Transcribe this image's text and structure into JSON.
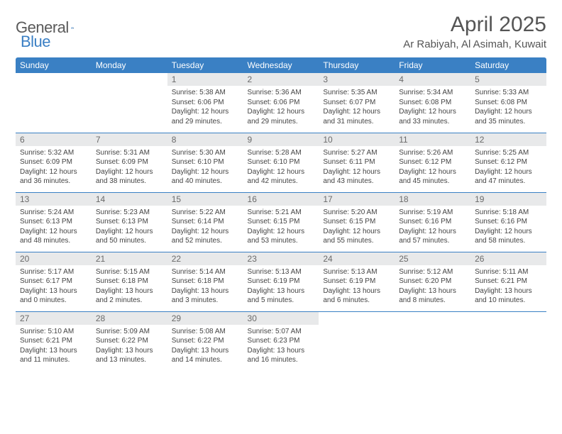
{
  "logo": {
    "text1": "General",
    "text2": "Blue"
  },
  "title": "April 2025",
  "location": "Ar Rabiyah, Al Asimah, Kuwait",
  "header_color": "#3a80c4",
  "daynum_bg": "#e8e9ea",
  "weekdays": [
    "Sunday",
    "Monday",
    "Tuesday",
    "Wednesday",
    "Thursday",
    "Friday",
    "Saturday"
  ],
  "days": [
    {
      "n": "",
      "sr": "",
      "ss": "",
      "dl": ""
    },
    {
      "n": "",
      "sr": "",
      "ss": "",
      "dl": ""
    },
    {
      "n": "1",
      "sr": "5:38 AM",
      "ss": "6:06 PM",
      "dl": "12 hours and 29 minutes."
    },
    {
      "n": "2",
      "sr": "5:36 AM",
      "ss": "6:06 PM",
      "dl": "12 hours and 29 minutes."
    },
    {
      "n": "3",
      "sr": "5:35 AM",
      "ss": "6:07 PM",
      "dl": "12 hours and 31 minutes."
    },
    {
      "n": "4",
      "sr": "5:34 AM",
      "ss": "6:08 PM",
      "dl": "12 hours and 33 minutes."
    },
    {
      "n": "5",
      "sr": "5:33 AM",
      "ss": "6:08 PM",
      "dl": "12 hours and 35 minutes."
    },
    {
      "n": "6",
      "sr": "5:32 AM",
      "ss": "6:09 PM",
      "dl": "12 hours and 36 minutes."
    },
    {
      "n": "7",
      "sr": "5:31 AM",
      "ss": "6:09 PM",
      "dl": "12 hours and 38 minutes."
    },
    {
      "n": "8",
      "sr": "5:30 AM",
      "ss": "6:10 PM",
      "dl": "12 hours and 40 minutes."
    },
    {
      "n": "9",
      "sr": "5:28 AM",
      "ss": "6:10 PM",
      "dl": "12 hours and 42 minutes."
    },
    {
      "n": "10",
      "sr": "5:27 AM",
      "ss": "6:11 PM",
      "dl": "12 hours and 43 minutes."
    },
    {
      "n": "11",
      "sr": "5:26 AM",
      "ss": "6:12 PM",
      "dl": "12 hours and 45 minutes."
    },
    {
      "n": "12",
      "sr": "5:25 AM",
      "ss": "6:12 PM",
      "dl": "12 hours and 47 minutes."
    },
    {
      "n": "13",
      "sr": "5:24 AM",
      "ss": "6:13 PM",
      "dl": "12 hours and 48 minutes."
    },
    {
      "n": "14",
      "sr": "5:23 AM",
      "ss": "6:13 PM",
      "dl": "12 hours and 50 minutes."
    },
    {
      "n": "15",
      "sr": "5:22 AM",
      "ss": "6:14 PM",
      "dl": "12 hours and 52 minutes."
    },
    {
      "n": "16",
      "sr": "5:21 AM",
      "ss": "6:15 PM",
      "dl": "12 hours and 53 minutes."
    },
    {
      "n": "17",
      "sr": "5:20 AM",
      "ss": "6:15 PM",
      "dl": "12 hours and 55 minutes."
    },
    {
      "n": "18",
      "sr": "5:19 AM",
      "ss": "6:16 PM",
      "dl": "12 hours and 57 minutes."
    },
    {
      "n": "19",
      "sr": "5:18 AM",
      "ss": "6:16 PM",
      "dl": "12 hours and 58 minutes."
    },
    {
      "n": "20",
      "sr": "5:17 AM",
      "ss": "6:17 PM",
      "dl": "13 hours and 0 minutes."
    },
    {
      "n": "21",
      "sr": "5:15 AM",
      "ss": "6:18 PM",
      "dl": "13 hours and 2 minutes."
    },
    {
      "n": "22",
      "sr": "5:14 AM",
      "ss": "6:18 PM",
      "dl": "13 hours and 3 minutes."
    },
    {
      "n": "23",
      "sr": "5:13 AM",
      "ss": "6:19 PM",
      "dl": "13 hours and 5 minutes."
    },
    {
      "n": "24",
      "sr": "5:13 AM",
      "ss": "6:19 PM",
      "dl": "13 hours and 6 minutes."
    },
    {
      "n": "25",
      "sr": "5:12 AM",
      "ss": "6:20 PM",
      "dl": "13 hours and 8 minutes."
    },
    {
      "n": "26",
      "sr": "5:11 AM",
      "ss": "6:21 PM",
      "dl": "13 hours and 10 minutes."
    },
    {
      "n": "27",
      "sr": "5:10 AM",
      "ss": "6:21 PM",
      "dl": "13 hours and 11 minutes."
    },
    {
      "n": "28",
      "sr": "5:09 AM",
      "ss": "6:22 PM",
      "dl": "13 hours and 13 minutes."
    },
    {
      "n": "29",
      "sr": "5:08 AM",
      "ss": "6:22 PM",
      "dl": "13 hours and 14 minutes."
    },
    {
      "n": "30",
      "sr": "5:07 AM",
      "ss": "6:23 PM",
      "dl": "13 hours and 16 minutes."
    },
    {
      "n": "",
      "sr": "",
      "ss": "",
      "dl": ""
    },
    {
      "n": "",
      "sr": "",
      "ss": "",
      "dl": ""
    },
    {
      "n": "",
      "sr": "",
      "ss": "",
      "dl": ""
    }
  ],
  "labels": {
    "sunrise": "Sunrise:",
    "sunset": "Sunset:",
    "daylight": "Daylight:"
  }
}
